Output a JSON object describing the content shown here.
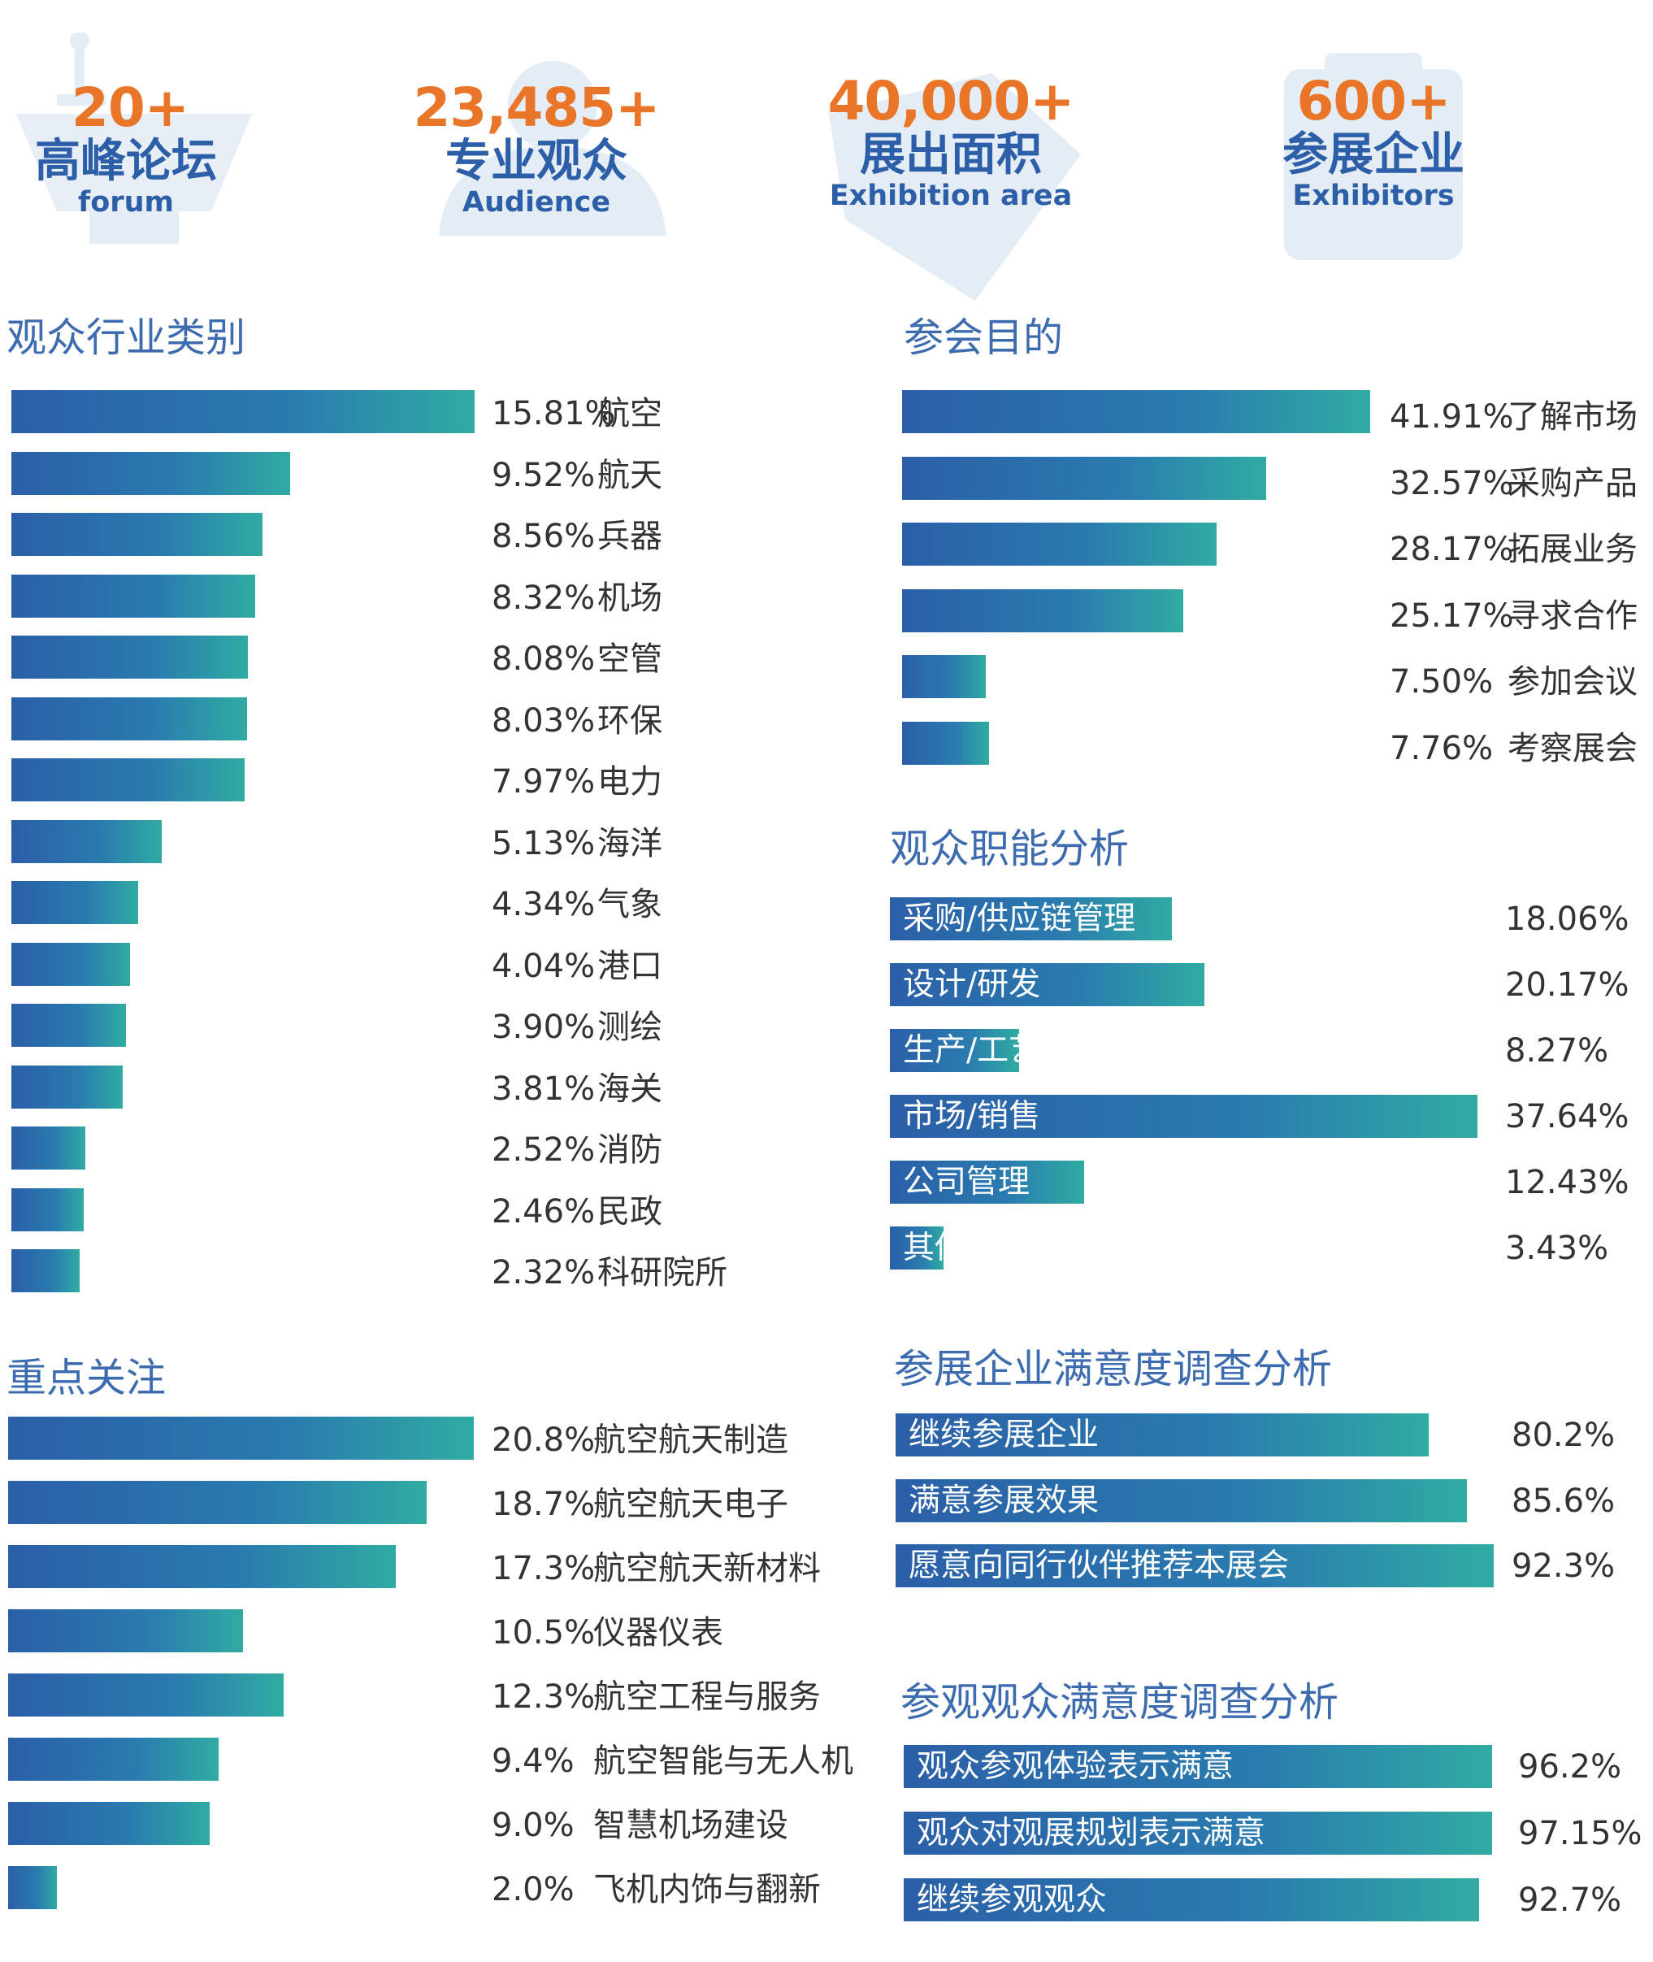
{
  "stats": [
    {
      "number": "20+",
      "cn": "高峰论坛",
      "en": "forum",
      "icon": "podium-icon"
    },
    {
      "number": "23,485+",
      "cn": "专业观众",
      "en": "Audience",
      "icon": "audience-icon"
    },
    {
      "number": "40,000+",
      "cn": "展出面积",
      "en": "Exhibition area",
      "icon": "area-icon"
    },
    {
      "number": "600+",
      "cn": "参展企业",
      "en": "Exhibitors",
      "icon": "building-icon"
    }
  ],
  "colors": {
    "accent_orange": "#E97528",
    "brand_blue": "#2C5FA7",
    "bar_start": "#2B5FA8",
    "bar_end": "#30ABA3"
  },
  "chart_data": [
    {
      "type": "bar",
      "title": "观众行业类别",
      "categories": [
        "航空",
        "航天",
        "兵器",
        "机场",
        "空管",
        "环保",
        "电力",
        "海洋",
        "气象",
        "港口",
        "测绘",
        "海关",
        "消防",
        "民政",
        "科研院所"
      ],
      "labels": [
        "15.81%",
        "9.52%",
        "8.56%",
        "8.32%",
        "8.08%",
        "8.03%",
        "7.97%",
        "5.13%",
        "4.34%",
        "4.04%",
        "3.90%",
        "3.81%",
        "2.52%",
        "2.46%",
        "2.32%"
      ],
      "values": [
        15.81,
        9.52,
        8.56,
        8.32,
        8.08,
        8.03,
        7.97,
        5.13,
        4.34,
        4.04,
        3.9,
        3.81,
        2.52,
        2.46,
        2.32
      ]
    },
    {
      "type": "bar",
      "title": "参会目的",
      "categories": [
        "了解市场",
        "采购产品",
        "拓展业务",
        "寻求合作",
        "参加会议",
        "考察展会"
      ],
      "labels": [
        "41.91%",
        "32.57%",
        "28.17%",
        "25.17%",
        "7.50%",
        "7.76%"
      ],
      "values": [
        41.91,
        32.57,
        28.17,
        25.17,
        7.5,
        7.76
      ]
    },
    {
      "type": "bar",
      "title": "观众职能分析",
      "categories": [
        "采购/供应链管理",
        "设计/研发",
        "生产/工艺/测试",
        "市场/销售",
        "公司管理",
        "其他"
      ],
      "labels": [
        "18.06%",
        "20.17%",
        "8.27%",
        "37.64%",
        "12.43%",
        "3.43%"
      ],
      "values": [
        18.06,
        20.17,
        8.27,
        37.64,
        12.43,
        3.43
      ]
    },
    {
      "type": "bar",
      "title": "重点关注",
      "categories": [
        "航空航天制造",
        "航空航天电子",
        "航空航天新材料",
        "仪器仪表",
        "航空工程与服务",
        "航空智能与无人机",
        "智慧机场建设",
        "飞机内饰与翻新"
      ],
      "labels": [
        "20.8%",
        "18.7%",
        "17.3%",
        "10.5%",
        "12.3%",
        "9.4%",
        "9.0%",
        "2.0%"
      ],
      "values": [
        20.8,
        18.7,
        17.3,
        10.5,
        12.3,
        9.4,
        9.0,
        2.0
      ]
    },
    {
      "type": "bar",
      "title": "参展企业满意度调查分析",
      "categories": [
        "继续参展企业",
        "满意参展效果",
        "愿意向同行伙伴推荐本展会"
      ],
      "labels": [
        "80.2%",
        "85.6%",
        "92.3%"
      ],
      "values": [
        80.2,
        85.6,
        92.3
      ]
    },
    {
      "type": "bar",
      "title": "参观观众满意度调查分析",
      "categories": [
        "观众参观体验表示满意",
        "观众对观展规划表示满意",
        "继续参观观众"
      ],
      "labels": [
        "96.2%",
        "97.15%",
        "92.7%"
      ],
      "values": [
        96.2,
        97.15,
        92.7
      ]
    }
  ]
}
